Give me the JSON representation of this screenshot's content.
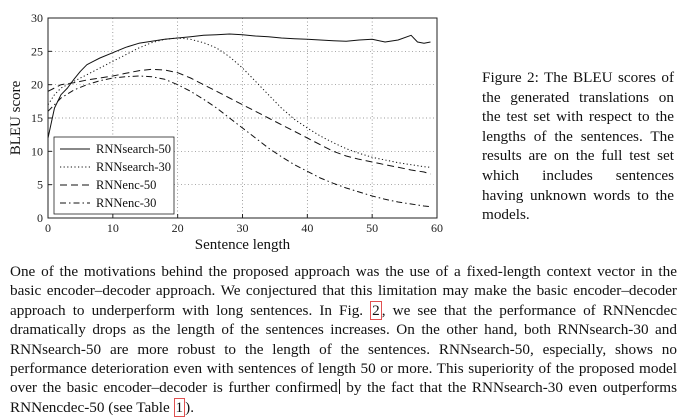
{
  "chart_data": {
    "type": "line",
    "xlabel": "Sentence length",
    "ylabel": "BLEU score",
    "xlim": [
      0,
      60
    ],
    "ylim": [
      0,
      30
    ],
    "xticks": [
      "0",
      "10",
      "20",
      "30",
      "40",
      "50",
      "60"
    ],
    "yticks": [
      "0",
      "5",
      "10",
      "15",
      "20",
      "25",
      "30"
    ],
    "grid": true,
    "legend_position": "bottom-left",
    "series": [
      {
        "name": "RNNsearch-50",
        "style": "solid",
        "x": [
          0,
          1,
          2,
          3,
          4,
          5,
          6,
          7,
          8,
          10,
          12,
          14,
          16,
          18,
          20,
          22,
          24,
          26,
          28,
          30,
          32,
          34,
          36,
          38,
          40,
          42,
          44,
          46,
          48,
          50,
          52,
          54,
          56,
          57,
          58,
          59
        ],
        "y": [
          12,
          16.5,
          18.5,
          19.5,
          20.8,
          22,
          23,
          23.5,
          24,
          24.8,
          25.6,
          26.2,
          26.5,
          26.8,
          27,
          27.2,
          27.4,
          27.5,
          27.6,
          27.5,
          27.3,
          27.2,
          27,
          26.9,
          26.8,
          26.7,
          26.6,
          26.5,
          26.7,
          26.8,
          26.4,
          26.7,
          27.4,
          26.4,
          26.2,
          26.4
        ]
      },
      {
        "name": "RNNsearch-30",
        "style": "dotted",
        "x": [
          0,
          1,
          2,
          4,
          6,
          8,
          10,
          12,
          14,
          16,
          18,
          20,
          22,
          24,
          26,
          28,
          30,
          32,
          34,
          36,
          38,
          40,
          42,
          44,
          46,
          48,
          50,
          52,
          54,
          56,
          58,
          59
        ],
        "y": [
          17,
          18.5,
          19.5,
          20.5,
          21.5,
          22.5,
          23.5,
          24.5,
          25.5,
          26.3,
          26.8,
          27,
          26.8,
          26.3,
          25.5,
          24.2,
          22.5,
          20.5,
          18.5,
          16.5,
          14.8,
          13.5,
          12.3,
          11.3,
          10.4,
          9.7,
          9.1,
          8.7,
          8.3,
          8,
          7.7,
          7.6
        ]
      },
      {
        "name": "RNNenc-50",
        "style": "dashed",
        "x": [
          0,
          1,
          2,
          4,
          6,
          8,
          10,
          12,
          14,
          16,
          18,
          20,
          22,
          24,
          26,
          28,
          30,
          32,
          34,
          36,
          38,
          40,
          42,
          44,
          46,
          48,
          50,
          52,
          54,
          56,
          58,
          59
        ],
        "y": [
          19,
          19.5,
          20,
          20.3,
          20.7,
          21,
          21.3,
          21.7,
          22.1,
          22.3,
          22.2,
          21.8,
          21,
          20,
          19,
          18,
          17,
          16,
          15,
          14,
          13,
          12,
          11,
          10,
          9.3,
          8.8,
          8.4,
          8,
          7.6,
          7.2,
          6.9,
          6.6
        ]
      },
      {
        "name": "RNNenc-30",
        "style": "dashdot",
        "x": [
          0,
          1,
          2,
          4,
          6,
          8,
          10,
          12,
          14,
          16,
          18,
          20,
          22,
          24,
          26,
          28,
          30,
          32,
          34,
          36,
          38,
          40,
          42,
          44,
          46,
          48,
          50,
          52,
          54,
          56,
          58,
          59
        ],
        "y": [
          16,
          17,
          18,
          19.2,
          20,
          20.6,
          21,
          21.2,
          21.3,
          21.2,
          20.8,
          20,
          19,
          17.8,
          16.5,
          15,
          13.5,
          12,
          10.5,
          9.2,
          8,
          7,
          6,
          5.2,
          4.5,
          3.9,
          3.3,
          2.8,
          2.4,
          2.1,
          1.8,
          1.7
        ]
      }
    ]
  },
  "caption": "Figure 2: The BLEU scores of the generated translations on the test set with respect to the lengths of the sentences. The results are on the full test set which includes sentences having unknown words to the models.",
  "body": {
    "p1": "One of the motivations behind the proposed approach was the use of a fixed-length context vector in the basic encoder–decoder approach. We conjectured that this limitation may make the basic encoder–decoder approach to underperform with long sentences. In Fig.",
    "ref_fig": "2",
    "p2": ", we see that the performance of RNNencdec dramatically drops as the length of the sentences increases. On the other hand, both RNNsearch-30 and RNNsearch-50 are more robust to the length of the sentences. RNNsearch-50, especially, shows no performance deterioration even with sentences of length 50 or more. This superiority of the proposed model over the basic encoder–decoder is further confirmed",
    "p3": "by the fact that the RNNsearch-30 even outperforms RNNencdec-50 (see Table",
    "ref_table": "1",
    "p4": ")."
  }
}
